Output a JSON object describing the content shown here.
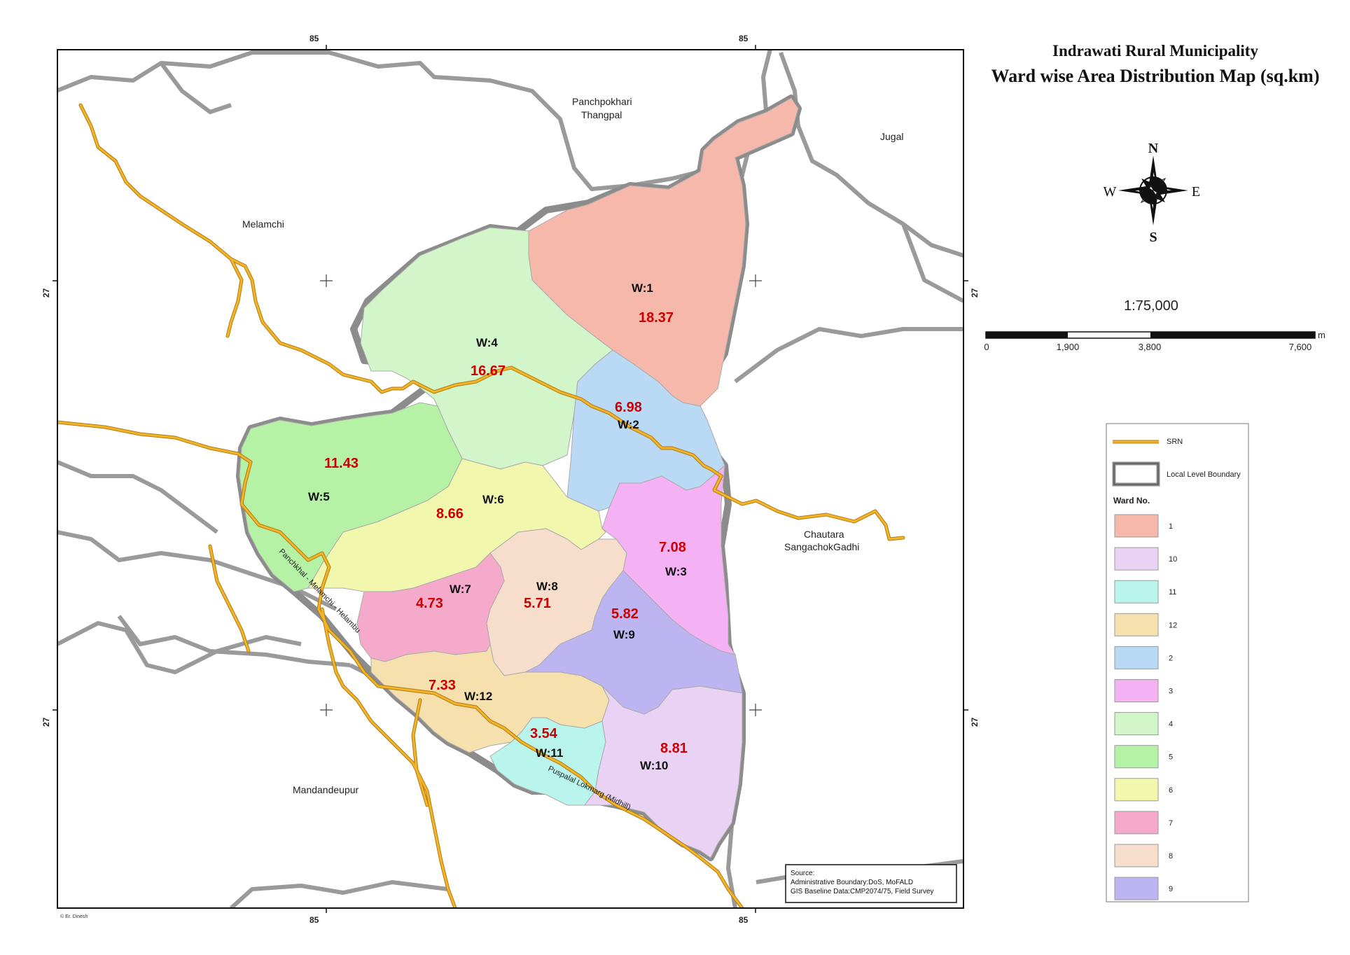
{
  "title_line1": "Indrawati Rural Municipality",
  "title_line2": "Ward wise Area Distribution Map (sq.km)",
  "compass": {
    "n": "N",
    "s": "S",
    "e": "E",
    "w": "W"
  },
  "scale": {
    "ratio": "1:75,000",
    "unit": "m",
    "ticks": [
      "0",
      "1,900",
      "3,800",
      "7,600"
    ]
  },
  "grid_labels": {
    "top_left": "85",
    "top_right": "85",
    "bottom_left": "85",
    "bottom_right": "85",
    "left_top": "27",
    "left_bottom": "27",
    "right_top": "27",
    "right_bottom": "27"
  },
  "places": {
    "panchpokhari_1": "Panchpokhari",
    "panchpokhari_2": "Thangpal",
    "jugal": "Jugal",
    "melamchi": "Melamchi",
    "chautara_1": "Chautara",
    "chautara_2": "SangachokGadhi",
    "mandandeupur": "Mandandeupur"
  },
  "roads": {
    "road1": "Panchkhal - Melamchi - Helambu",
    "road2": "Puspalal Lokmarg (Midhill)"
  },
  "wards": [
    {
      "label": "W:1",
      "area": "18.37",
      "color": "#f5b8ab"
    },
    {
      "label": "W:2",
      "area": "6.98",
      "color": "#b9d9f5"
    },
    {
      "label": "W:3",
      "area": "7.08",
      "color": "#f4b1f4"
    },
    {
      "label": "W:4",
      "area": "16.67",
      "color": "#d2f5c9"
    },
    {
      "label": "W:5",
      "area": "11.43",
      "color": "#b6f2a6"
    },
    {
      "label": "W:6",
      "area": "8.66",
      "color": "#f1f7ad"
    },
    {
      "label": "W:7",
      "area": "4.73",
      "color": "#f6aacb"
    },
    {
      "label": "W:8",
      "area": "5.71",
      "color": "#f7ddcb"
    },
    {
      "label": "W:9",
      "area": "5.82",
      "color": "#bcb5f2"
    },
    {
      "label": "W:10",
      "area": "8.81",
      "color": "#ead2f5"
    },
    {
      "label": "W:11",
      "area": "3.54",
      "color": "#b9f5ed"
    },
    {
      "label": "W:12",
      "area": "7.33",
      "color": "#f5e0ae"
    }
  ],
  "legend": {
    "srn": "SRN",
    "boundary": "Local Level Boundary",
    "heading": "Ward No.",
    "items": [
      {
        "label": "1",
        "color": "#f5b8ab"
      },
      {
        "label": "10",
        "color": "#ead2f5"
      },
      {
        "label": "11",
        "color": "#b9f5ed"
      },
      {
        "label": "12",
        "color": "#f5e0ae"
      },
      {
        "label": "2",
        "color": "#b9d9f5"
      },
      {
        "label": "3",
        "color": "#f4b1f4"
      },
      {
        "label": "4",
        "color": "#d2f5c9"
      },
      {
        "label": "5",
        "color": "#b6f2a6"
      },
      {
        "label": "6",
        "color": "#f1f7ad"
      },
      {
        "label": "7",
        "color": "#f6aacb"
      },
      {
        "label": "8",
        "color": "#f7ddcb"
      },
      {
        "label": "9",
        "color": "#bcb5f2"
      }
    ]
  },
  "source": {
    "line1": "Source:",
    "line2": "Administrative Boundary:DoS, MoFALD",
    "line3": "GIS Baseline Data:CMP2074/75, Field Survey"
  },
  "credit": "© Er. Dinesh"
}
